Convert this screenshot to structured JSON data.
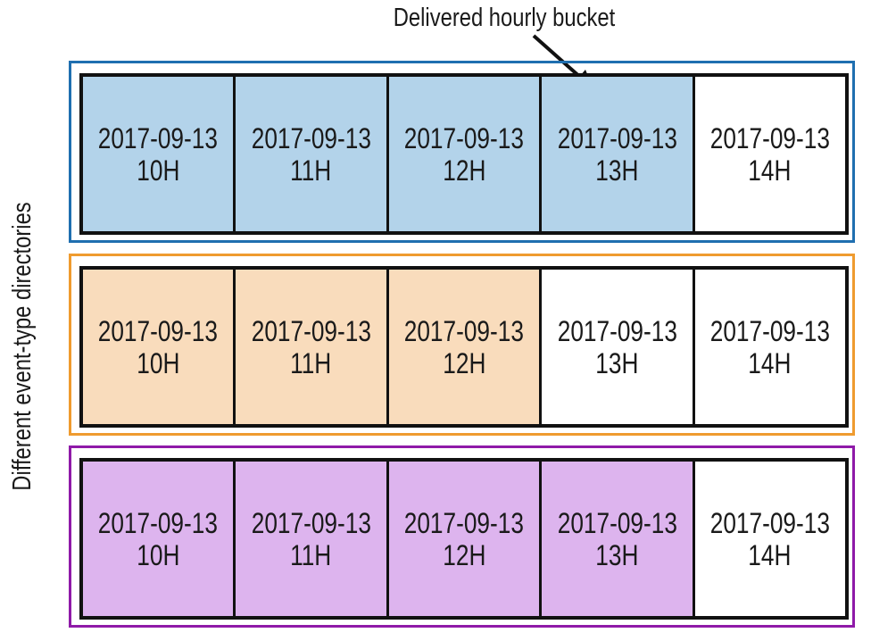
{
  "callout": {
    "text": "Delivered hourly bucket"
  },
  "side_label": {
    "text": "Different event-type directories"
  },
  "groups": [
    {
      "border_color": "#1f6fb0",
      "fill_color": "#b3d3ea",
      "delivered_count": 4,
      "cells": [
        {
          "date": "2017-09-13",
          "hour": "10H"
        },
        {
          "date": "2017-09-13",
          "hour": "11H"
        },
        {
          "date": "2017-09-13",
          "hour": "12H"
        },
        {
          "date": "2017-09-13",
          "hour": "13H"
        },
        {
          "date": "2017-09-13",
          "hour": "14H"
        }
      ]
    },
    {
      "border_color": "#ef9b2f",
      "fill_color": "#f9dcbc",
      "delivered_count": 3,
      "cells": [
        {
          "date": "2017-09-13",
          "hour": "10H"
        },
        {
          "date": "2017-09-13",
          "hour": "11H"
        },
        {
          "date": "2017-09-13",
          "hour": "12H"
        },
        {
          "date": "2017-09-13",
          "hour": "13H"
        },
        {
          "date": "2017-09-13",
          "hour": "14H"
        }
      ]
    },
    {
      "border_color": "#8f1aa8",
      "fill_color": "#ddb4ee",
      "delivered_count": 4,
      "cells": [
        {
          "date": "2017-09-13",
          "hour": "10H"
        },
        {
          "date": "2017-09-13",
          "hour": "11H"
        },
        {
          "date": "2017-09-13",
          "hour": "12H"
        },
        {
          "date": "2017-09-13",
          "hour": "13H"
        },
        {
          "date": "2017-09-13",
          "hour": "14H"
        }
      ]
    }
  ]
}
